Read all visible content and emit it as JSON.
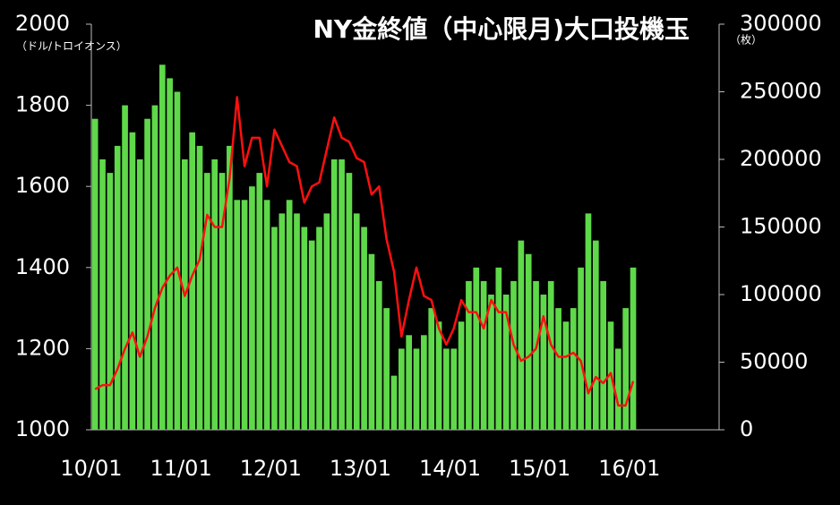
{
  "chart_data": {
    "type": "combo",
    "title": "NY金終値（中心限月)大口投機玉",
    "y_unit": "（ドル/トロイオンス）",
    "y2_unit": "（枚）",
    "categories": [
      "10/01",
      null,
      null,
      null,
      null,
      null,
      null,
      null,
      null,
      null,
      null,
      null,
      "11/01",
      null,
      null,
      null,
      null,
      null,
      null,
      null,
      null,
      null,
      null,
      null,
      "12/01",
      null,
      null,
      null,
      null,
      null,
      null,
      null,
      null,
      null,
      null,
      null,
      "13/01",
      null,
      null,
      null,
      null,
      null,
      null,
      null,
      null,
      null,
      null,
      null,
      "14/01",
      null,
      null,
      null,
      null,
      null,
      null,
      null,
      null,
      null,
      null,
      null,
      "15/01",
      null,
      null,
      null,
      null,
      null,
      null,
      null,
      null,
      null,
      null,
      null,
      "16/01",
      null,
      null,
      null,
      null,
      null,
      null,
      null,
      null,
      null,
      null,
      null
    ],
    "ylim": [
      1000,
      2000
    ],
    "yticks": [
      1000,
      1200,
      1400,
      1600,
      1800,
      2000
    ],
    "y2lim": [
      0,
      300000
    ],
    "y2ticks": [
      0,
      50000,
      100000,
      150000,
      200000,
      250000,
      300000
    ],
    "series": [
      {
        "type": "bar",
        "axis": "y2",
        "color": "#5fd84a",
        "values": [
          230000,
          200000,
          190000,
          210000,
          240000,
          220000,
          200000,
          230000,
          240000,
          270000,
          260000,
          250000,
          200000,
          220000,
          210000,
          190000,
          200000,
          190000,
          210000,
          170000,
          170000,
          180000,
          190000,
          170000,
          150000,
          160000,
          170000,
          160000,
          150000,
          140000,
          150000,
          160000,
          200000,
          200000,
          190000,
          160000,
          150000,
          130000,
          110000,
          90000,
          40000,
          60000,
          70000,
          60000,
          70000,
          90000,
          80000,
          60000,
          60000,
          80000,
          110000,
          120000,
          110000,
          100000,
          120000,
          100000,
          110000,
          140000,
          130000,
          110000,
          100000,
          110000,
          90000,
          80000,
          90000,
          120000,
          160000,
          140000,
          110000,
          80000,
          60000,
          90000,
          120000,
          null,
          null,
          null,
          null,
          null,
          null,
          null,
          null,
          null,
          null,
          null
        ]
      },
      {
        "type": "line",
        "axis": "y",
        "color": "#ff1010",
        "values": [
          1100,
          1110,
          1110,
          1150,
          1200,
          1240,
          1180,
          1230,
          1300,
          1350,
          1380,
          1400,
          1330,
          1380,
          1420,
          1530,
          1500,
          1500,
          1620,
          1820,
          1650,
          1720,
          1720,
          1600,
          1740,
          1700,
          1660,
          1650,
          1560,
          1600,
          1610,
          1690,
          1770,
          1720,
          1710,
          1670,
          1660,
          1580,
          1600,
          1470,
          1390,
          1230,
          1320,
          1400,
          1330,
          1320,
          1250,
          1210,
          1250,
          1320,
          1290,
          1290,
          1250,
          1320,
          1290,
          1290,
          1210,
          1170,
          1180,
          1200,
          1280,
          1210,
          1180,
          1180,
          1190,
          1170,
          1090,
          1130,
          1115,
          1140,
          1060,
          1060,
          1120,
          null,
          null,
          null,
          null,
          null,
          null,
          null,
          null,
          null,
          null,
          null
        ]
      }
    ]
  }
}
